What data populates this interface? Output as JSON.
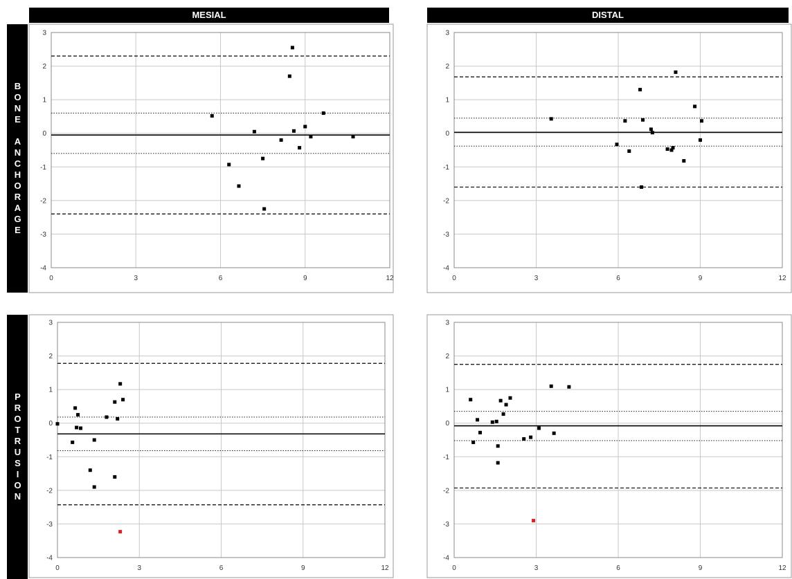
{
  "headers": {
    "columns": [
      "MESIAL",
      "DISTAL"
    ],
    "rows": [
      "BONE ANCHORAGE",
      "PROTRUSION"
    ]
  },
  "colors": {
    "point": "#000000",
    "outlier": "#e02020",
    "grid": "#c8c8c8",
    "header_bg": "#000000"
  },
  "chart_data": [
    {
      "type": "scatter",
      "title": "",
      "xlabel": "",
      "ylabel": "",
      "xlim": [
        0,
        12
      ],
      "ylim": [
        -4,
        3
      ],
      "xticks": [
        0,
        3,
        6,
        9,
        12
      ],
      "yticks": [
        3,
        2,
        1,
        0,
        -1,
        -2,
        -3,
        -4
      ],
      "grid": true,
      "reference_lines": {
        "mean": -0.05,
        "upper_loa": 2.3,
        "lower_loa": -2.4,
        "upper_inner": 0.6,
        "lower_inner": -0.6
      },
      "points": [
        {
          "x": 5.7,
          "y": 0.52
        },
        {
          "x": 6.3,
          "y": -0.93
        },
        {
          "x": 6.65,
          "y": -1.57
        },
        {
          "x": 7.2,
          "y": 0.05
        },
        {
          "x": 7.5,
          "y": -0.75
        },
        {
          "x": 7.55,
          "y": -2.25
        },
        {
          "x": 8.15,
          "y": -0.2
        },
        {
          "x": 8.45,
          "y": 1.7
        },
        {
          "x": 8.55,
          "y": 2.55
        },
        {
          "x": 8.6,
          "y": 0.07
        },
        {
          "x": 8.8,
          "y": -0.43
        },
        {
          "x": 9.0,
          "y": 0.2
        },
        {
          "x": 9.2,
          "y": -0.1
        },
        {
          "x": 9.65,
          "y": 0.6
        },
        {
          "x": 10.7,
          "y": -0.1
        }
      ]
    },
    {
      "type": "scatter",
      "title": "",
      "xlabel": "",
      "ylabel": "",
      "xlim": [
        0,
        12
      ],
      "ylim": [
        -4,
        3
      ],
      "xticks": [
        0,
        3,
        6,
        9,
        12
      ],
      "yticks": [
        3,
        2,
        1,
        0,
        -1,
        -2,
        -3,
        -4
      ],
      "grid": true,
      "reference_lines": {
        "mean": 0.03,
        "upper_loa": 1.68,
        "lower_loa": -1.6,
        "upper_inner": 0.45,
        "lower_inner": -0.38
      },
      "points": [
        {
          "x": 3.55,
          "y": 0.43
        },
        {
          "x": 5.95,
          "y": -0.33
        },
        {
          "x": 6.25,
          "y": 0.37
        },
        {
          "x": 6.4,
          "y": -0.53
        },
        {
          "x": 6.8,
          "y": 1.3
        },
        {
          "x": 6.9,
          "y": 0.4
        },
        {
          "x": 6.85,
          "y": -1.6
        },
        {
          "x": 7.2,
          "y": 0.12
        },
        {
          "x": 7.25,
          "y": 0.02
        },
        {
          "x": 7.8,
          "y": -0.47
        },
        {
          "x": 7.95,
          "y": -0.5
        },
        {
          "x": 8.0,
          "y": -0.43
        },
        {
          "x": 8.1,
          "y": 1.82
        },
        {
          "x": 8.4,
          "y": -0.82
        },
        {
          "x": 8.8,
          "y": 0.8
        },
        {
          "x": 9.0,
          "y": -0.2
        },
        {
          "x": 9.05,
          "y": 0.37
        }
      ]
    },
    {
      "type": "scatter",
      "title": "",
      "xlabel": "",
      "ylabel": "",
      "xlim": [
        0,
        12
      ],
      "ylim": [
        -4,
        3
      ],
      "xticks": [
        0,
        3,
        6,
        9,
        12
      ],
      "yticks": [
        3,
        2,
        1,
        0,
        -1,
        -2,
        -3,
        -4
      ],
      "grid": true,
      "reference_lines": {
        "mean": -0.32,
        "upper_loa": 1.78,
        "lower_loa": -2.43,
        "upper_inner": 0.18,
        "lower_inner": -0.82
      },
      "points": [
        {
          "x": 0.0,
          "y": -0.02
        },
        {
          "x": 0.55,
          "y": -0.57
        },
        {
          "x": 0.65,
          "y": 0.45
        },
        {
          "x": 0.7,
          "y": -0.13
        },
        {
          "x": 0.75,
          "y": 0.25
        },
        {
          "x": 0.85,
          "y": -0.15
        },
        {
          "x": 1.2,
          "y": -1.4
        },
        {
          "x": 1.35,
          "y": -0.5
        },
        {
          "x": 1.35,
          "y": -1.9
        },
        {
          "x": 1.8,
          "y": 0.18
        },
        {
          "x": 2.1,
          "y": 0.63
        },
        {
          "x": 2.1,
          "y": -1.6
        },
        {
          "x": 2.2,
          "y": 0.13
        },
        {
          "x": 2.3,
          "y": 1.17
        },
        {
          "x": 2.4,
          "y": 0.7
        },
        {
          "x": 2.3,
          "y": -3.23,
          "outlier": true
        }
      ]
    },
    {
      "type": "scatter",
      "title": "",
      "xlabel": "",
      "ylabel": "",
      "xlim": [
        0,
        12
      ],
      "ylim": [
        -4,
        3
      ],
      "xticks": [
        0,
        3,
        6,
        9,
        12
      ],
      "yticks": [
        3,
        2,
        1,
        0,
        -1,
        -2,
        -3,
        -4
      ],
      "grid": true,
      "reference_lines": {
        "mean": -0.08,
        "upper_loa": 1.75,
        "lower_loa": -1.93,
        "upper_inner": 0.35,
        "lower_inner": -0.52
      },
      "points": [
        {
          "x": 0.6,
          "y": 0.7
        },
        {
          "x": 0.7,
          "y": -0.57
        },
        {
          "x": 0.85,
          "y": 0.1
        },
        {
          "x": 0.95,
          "y": -0.28
        },
        {
          "x": 1.4,
          "y": 0.03
        },
        {
          "x": 1.55,
          "y": 0.05
        },
        {
          "x": 1.6,
          "y": -0.68
        },
        {
          "x": 1.6,
          "y": -1.18
        },
        {
          "x": 1.7,
          "y": 0.67
        },
        {
          "x": 1.8,
          "y": 0.27
        },
        {
          "x": 1.9,
          "y": 0.55
        },
        {
          "x": 2.05,
          "y": 0.75
        },
        {
          "x": 2.55,
          "y": -0.47
        },
        {
          "x": 2.8,
          "y": -0.42
        },
        {
          "x": 3.1,
          "y": -0.15
        },
        {
          "x": 3.55,
          "y": 1.1
        },
        {
          "x": 3.65,
          "y": -0.3
        },
        {
          "x": 4.2,
          "y": 1.08
        },
        {
          "x": 2.9,
          "y": -2.9,
          "outlier": true
        }
      ]
    }
  ]
}
